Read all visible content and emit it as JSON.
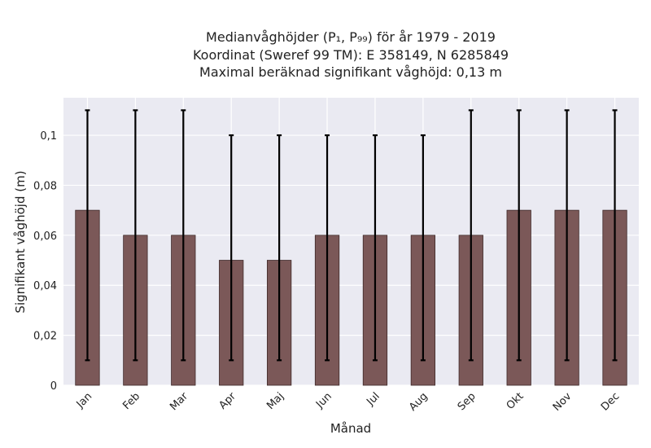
{
  "chart_data": {
    "type": "bar",
    "title_lines": [
      "Medianvåghöjder (P₁, P₉₉) för år 1979 - 2019",
      "Koordinat (Sweref 99 TM): E 358149, N 6285849",
      "Maximal beräknad signifikant våghöjd: 0,13 m"
    ],
    "xlabel": "Månad",
    "ylabel": "Signifikant våghöjd (m)",
    "categories": [
      "Jan",
      "Feb",
      "Mar",
      "Apr",
      "Maj",
      "Jun",
      "Jul",
      "Aug",
      "Sep",
      "Okt",
      "Nov",
      "Dec"
    ],
    "values": [
      0.07,
      0.06,
      0.06,
      0.05,
      0.05,
      0.06,
      0.06,
      0.06,
      0.06,
      0.07,
      0.07,
      0.07
    ],
    "p1": [
      0.01,
      0.01,
      0.01,
      0.01,
      0.01,
      0.01,
      0.01,
      0.01,
      0.01,
      0.01,
      0.01,
      0.01
    ],
    "p99": [
      0.11,
      0.11,
      0.11,
      0.1,
      0.1,
      0.1,
      0.1,
      0.1,
      0.11,
      0.11,
      0.11,
      0.11
    ],
    "ylim": [
      0,
      0.115
    ],
    "yticks": [
      0,
      0.02,
      0.04,
      0.06,
      0.08,
      0.1
    ],
    "ytick_labels": [
      "0",
      "0,02",
      "0,04",
      "0,06",
      "0,08",
      "0,1"
    ],
    "grid": true,
    "colors": {
      "bar": "#7b5858",
      "bar_edge": "#3f2a2a",
      "plot_bg": "#eaeaf2",
      "grid": "#ffffff",
      "errorbar": "#000000"
    }
  }
}
